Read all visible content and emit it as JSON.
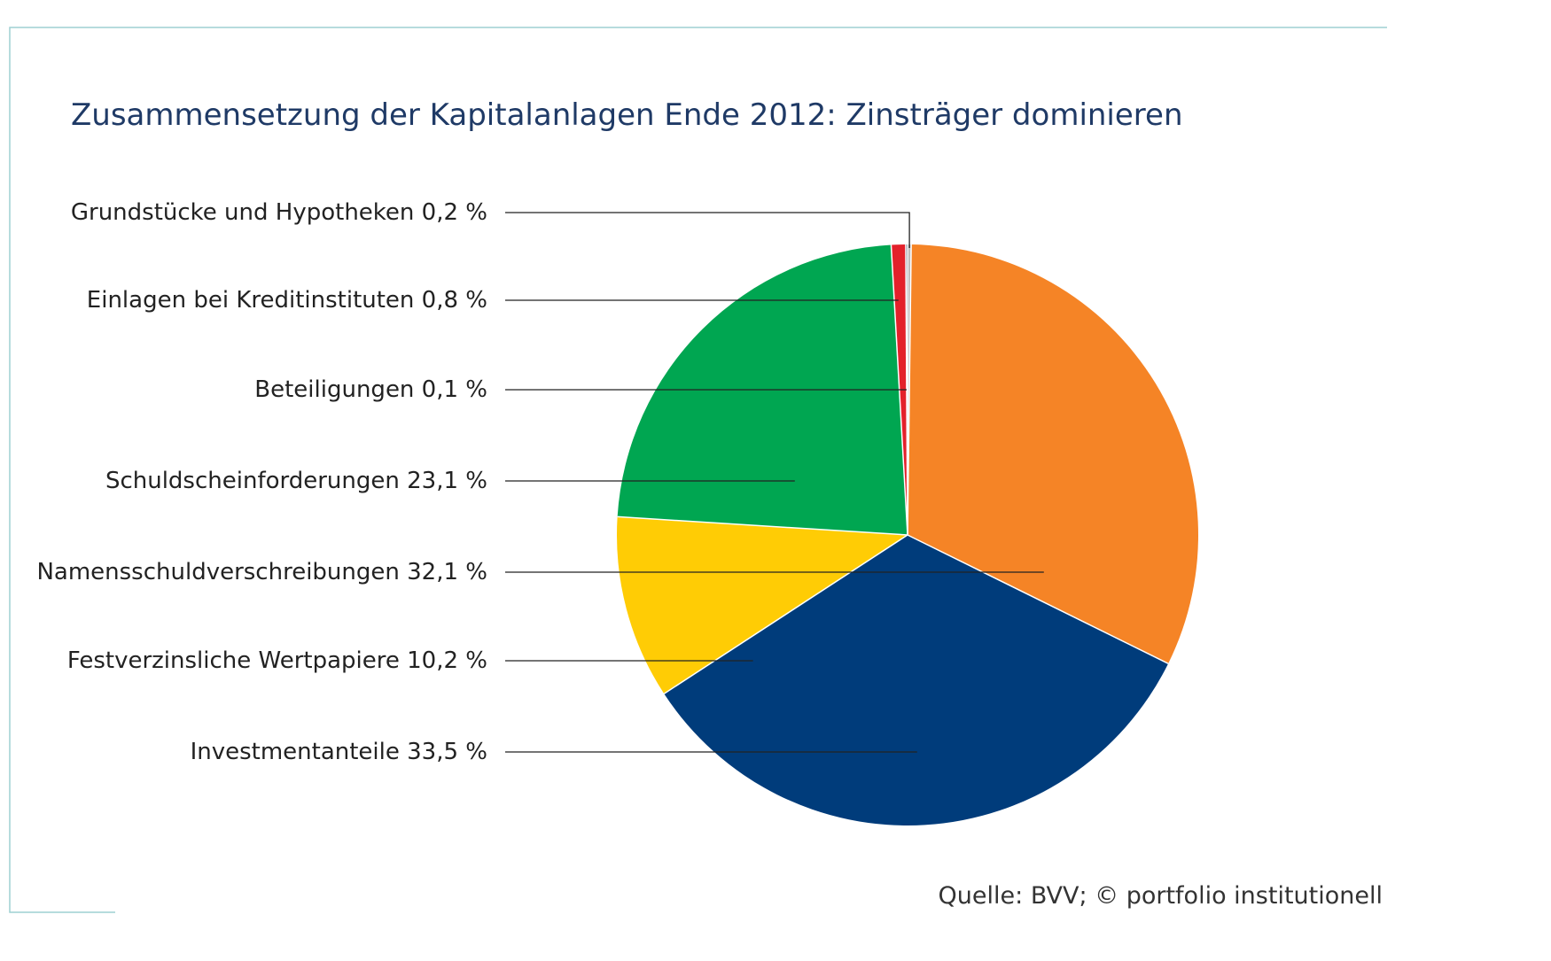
{
  "title": "Zusammensetzung der Kapitalanlagen Ende 2012: Zinsträger dominieren",
  "source": "Quelle: BVV; © portfolio institutionell",
  "colors": {
    "frame": "#9dd1d2",
    "leader": "#222222",
    "title": "#1f3a66"
  },
  "chart_data": {
    "type": "pie",
    "title": "Zusammensetzung der Kapitalanlagen Ende 2012: Zinsträger dominieren",
    "unit": "%",
    "slices": [
      {
        "label": "Grundstücke und Hypotheken 0,2 %",
        "name": "Grundstücke und Hypotheken",
        "value": 0.2,
        "color": "#bdbdbd"
      },
      {
        "label": "Einlagen bei Kreditinstituten 0,8 %",
        "name": "Einlagen bei Kreditinstituten",
        "value": 0.8,
        "color": "#e3212b"
      },
      {
        "label": "Beteiligungen 0,1 %",
        "name": "Beteiligungen",
        "value": 0.1,
        "color": "#1f2f4f"
      },
      {
        "label": "Schuldscheinforderungen 23,1 %",
        "name": "Schuldscheinforderungen",
        "value": 23.1,
        "color": "#00a651"
      },
      {
        "label": "Namensschuldverschreibungen 32,1 %",
        "name": "Namensschuldverschreibungen",
        "value": 32.1,
        "color": "#f58426"
      },
      {
        "label": "Festverzinsliche Wertpapiere 10,2 %",
        "name": "Festverzinsliche Wertpapiere",
        "value": 10.2,
        "color": "#ffcc05"
      },
      {
        "label": "Investmentanteile 33,5 %",
        "name": "Investmentanteile",
        "value": 33.5,
        "color": "#003c7b"
      }
    ]
  }
}
